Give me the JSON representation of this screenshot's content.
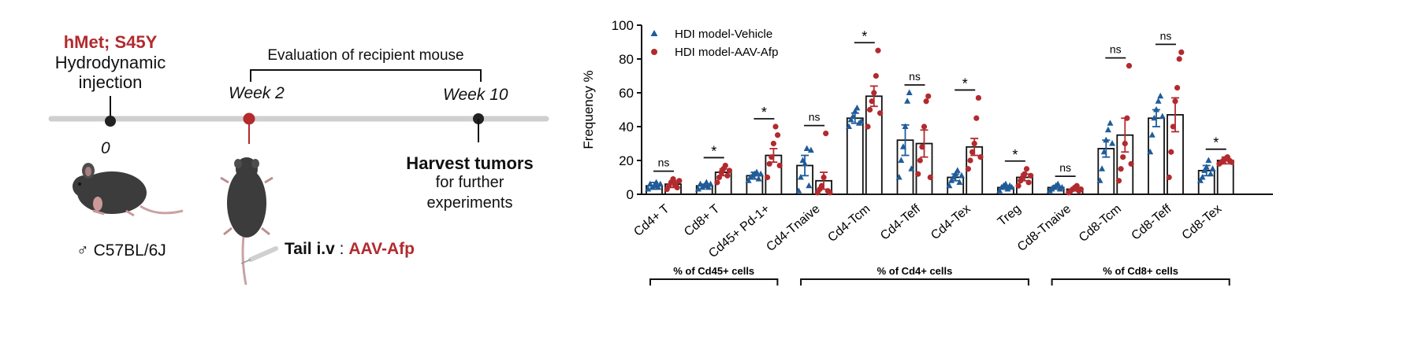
{
  "timeline": {
    "genotype": "hMet; S45Y",
    "injection_line1": "Hydrodynamic",
    "injection_line2": "injection",
    "evaluation": "Evaluation of recipient mouse",
    "week0": "0",
    "week2": "Week 2",
    "week10": "Week 10",
    "harvest_bold": "Harvest tumors",
    "harvest_line2": "for further",
    "harvest_line3": "experiments",
    "mouse_strain": "♂ C57BL/6J",
    "tail_label": "Tail i.v",
    "tail_sep": " : ",
    "tail_virus": "AAV-Afp",
    "colors": {
      "red": "#b22a2e",
      "line": "#cfcfcf",
      "mouse": "#3c3c3c"
    }
  },
  "chart_data": {
    "type": "bar",
    "ylabel": "Frequency %",
    "ylim": [
      0,
      100
    ],
    "yticks": [
      0,
      20,
      40,
      60,
      80,
      100
    ],
    "categories": [
      "Cd4+ T",
      "Cd8+ T",
      "Cd45+ Pd-1+",
      "Cd4-Tnaive",
      "Cd4-Tcm",
      "Cd4-Teff",
      "Cd4-Tex",
      "Treg",
      "Cd8-Tnaive",
      "Cd8-Tcm",
      "Cd8-Teff",
      "Cd8-Tex"
    ],
    "significance": [
      "ns",
      "*",
      "*",
      "ns",
      "*",
      "ns",
      "*",
      "*",
      "ns",
      "ns",
      "ns",
      "*"
    ],
    "series": [
      {
        "name": "HDI model-Vehicle",
        "color": "#1f5c99",
        "marker": "triangle",
        "values": [
          5,
          5,
          11,
          17,
          45,
          32,
          10,
          4,
          4,
          27,
          45,
          14
        ],
        "errors": [
          2,
          1,
          2,
          6,
          3,
          9,
          2,
          1,
          1,
          5,
          5,
          3
        ],
        "points": [
          [
            3,
            6,
            4,
            5,
            7,
            4,
            6
          ],
          [
            3,
            6,
            4,
            5,
            7,
            4,
            6
          ],
          [
            8,
            10,
            11,
            12,
            13,
            9,
            12
          ],
          [
            2,
            10,
            20,
            18,
            27,
            5,
            26
          ],
          [
            40,
            44,
            46,
            49,
            51,
            42,
            43
          ],
          [
            10,
            20,
            28,
            40,
            55,
            60,
            15
          ],
          [
            5,
            8,
            10,
            12,
            14,
            7,
            11
          ],
          [
            2,
            4,
            5,
            6,
            3,
            5,
            4
          ],
          [
            2,
            3,
            4,
            5,
            6,
            3,
            4
          ],
          [
            8,
            15,
            25,
            32,
            38,
            42,
            30
          ],
          [
            25,
            35,
            45,
            50,
            55,
            58,
            46
          ],
          [
            8,
            10,
            14,
            16,
            20,
            12,
            15
          ]
        ]
      },
      {
        "name": "HDI model-AAV-Afp",
        "color": "#b22a2e",
        "marker": "circle",
        "values": [
          6,
          13,
          23,
          8,
          58,
          30,
          28,
          10,
          3,
          35,
          47,
          20
        ],
        "errors": [
          2,
          2,
          4,
          5,
          6,
          8,
          5,
          2,
          1,
          10,
          10,
          2
        ],
        "points": [
          [
            3,
            5,
            7,
            9,
            6,
            4,
            8
          ],
          [
            7,
            10,
            13,
            15,
            17,
            11,
            14
          ],
          [
            10,
            18,
            22,
            30,
            40,
            35,
            17
          ],
          [
            1,
            3,
            5,
            10,
            36,
            2,
            1
          ],
          [
            40,
            50,
            55,
            60,
            70,
            85,
            48
          ],
          [
            12,
            20,
            28,
            40,
            55,
            58,
            10
          ],
          [
            15,
            20,
            25,
            30,
            45,
            57,
            22
          ],
          [
            5,
            8,
            10,
            12,
            15,
            7,
            11
          ],
          [
            1,
            2,
            3,
            4,
            5,
            2,
            3
          ],
          [
            8,
            15,
            22,
            30,
            45,
            76,
            18
          ],
          [
            10,
            25,
            40,
            55,
            63,
            80,
            84
          ],
          [
            18,
            19,
            20,
            21,
            22,
            20,
            19
          ]
        ]
      }
    ],
    "groups": [
      {
        "label": "% of Cd45+ cells",
        "from": 0,
        "to": 2
      },
      {
        "label": "% of Cd4+ cells",
        "from": 3,
        "to": 7
      },
      {
        "label": "% of Cd8+ cells",
        "from": 8,
        "to": 11
      }
    ],
    "legend_position": "top-left"
  }
}
